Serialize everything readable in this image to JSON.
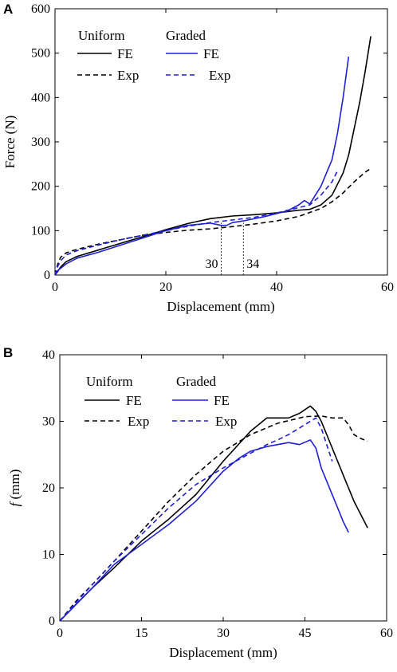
{
  "colors": {
    "uniform": "#000000",
    "graded": "#1f1fd6"
  },
  "chart_data": [
    {
      "type": "line",
      "panel": "A",
      "xlabel": "Displacement (mm)",
      "ylabel": "Force (N)",
      "xlim": [
        0,
        60
      ],
      "ylim": [
        0,
        600
      ],
      "xticks": [
        0,
        20,
        40,
        60
      ],
      "yticks": [
        0,
        100,
        200,
        300,
        400,
        500,
        600
      ],
      "legend": {
        "group1": "Uniform",
        "group2": "Graded",
        "fe": "FE",
        "exp": "Exp"
      },
      "annotations": [
        {
          "x": 30,
          "label": "30"
        },
        {
          "x": 34,
          "label": "34"
        }
      ],
      "series": [
        {
          "group": "Uniform",
          "kind": "FE",
          "color": "uniform",
          "dash": false,
          "x": [
            0,
            0.5,
            1,
            2,
            4,
            8,
            12,
            16,
            20,
            24,
            28,
            32,
            36,
            40,
            44,
            46,
            48,
            50,
            52,
            53,
            54,
            55,
            56,
            57
          ],
          "y": [
            0,
            8,
            18,
            30,
            42,
            57,
            72,
            87,
            102,
            116,
            127,
            133,
            136,
            140,
            146,
            148,
            158,
            180,
            230,
            270,
            330,
            390,
            460,
            538
          ]
        },
        {
          "group": "Uniform",
          "kind": "Exp",
          "color": "uniform",
          "dash": true,
          "x": [
            0,
            0.5,
            1,
            2,
            4,
            8,
            12,
            16,
            20,
            24,
            28,
            32,
            36,
            40,
            44,
            48,
            50,
            52,
            54,
            56,
            57
          ],
          "y": [
            0,
            25,
            40,
            50,
            58,
            70,
            80,
            90,
            96,
            101,
            104,
            109,
            115,
            122,
            132,
            150,
            165,
            185,
            210,
            232,
            240
          ]
        },
        {
          "group": "Graded",
          "kind": "FE",
          "color": "graded",
          "dash": false,
          "x": [
            0,
            0.5,
            1,
            2,
            4,
            8,
            12,
            16,
            20,
            24,
            28,
            30,
            31,
            32,
            34,
            38,
            42,
            44,
            45,
            46,
            48,
            50,
            51,
            52,
            53
          ],
          "y": [
            0,
            10,
            15,
            25,
            38,
            52,
            68,
            84,
            100,
            112,
            117,
            112,
            112,
            118,
            122,
            132,
            145,
            158,
            168,
            160,
            200,
            260,
            320,
            400,
            492
          ]
        },
        {
          "group": "Graded",
          "kind": "Exp",
          "color": "graded",
          "dash": true,
          "x": [
            0,
            0.5,
            1,
            2,
            4,
            8,
            12,
            16,
            20,
            24,
            28,
            32,
            36,
            40,
            44,
            46,
            48,
            50,
            51
          ],
          "y": [
            0,
            20,
            32,
            45,
            55,
            68,
            80,
            90,
            100,
            110,
            118,
            124,
            130,
            140,
            152,
            158,
            180,
            210,
            235
          ]
        }
      ]
    },
    {
      "type": "line",
      "panel": "B",
      "xlabel": "Displacement (mm)",
      "ylabel": "f (mm)",
      "xlim": [
        0,
        60
      ],
      "ylim": [
        0,
        40
      ],
      "xticks": [
        0,
        15,
        30,
        45,
        60
      ],
      "yticks": [
        0,
        10,
        20,
        30,
        40
      ],
      "legend": {
        "group1": "Uniform",
        "group2": "Graded",
        "fe": "FE",
        "exp": "Exp"
      },
      "series": [
        {
          "group": "Uniform",
          "kind": "FE",
          "color": "uniform",
          "dash": false,
          "x": [
            0,
            3,
            6,
            10,
            15,
            20,
            25,
            30,
            35,
            38,
            40,
            42,
            44,
            46,
            47,
            48,
            50,
            52,
            54,
            56.5
          ],
          "y": [
            0,
            2.5,
            5,
            8,
            12,
            15.3,
            19,
            24,
            28.5,
            30.5,
            30.5,
            30.5,
            31.2,
            32.3,
            31.5,
            30,
            26,
            22,
            18,
            14
          ]
        },
        {
          "group": "Uniform",
          "kind": "Exp",
          "color": "uniform",
          "dash": true,
          "x": [
            0,
            3,
            6,
            10,
            15,
            20,
            25,
            30,
            35,
            40,
            45,
            48,
            50,
            52,
            53,
            54,
            55,
            56.5
          ],
          "y": [
            0,
            3,
            5.5,
            9,
            13.5,
            18,
            22,
            25.5,
            28,
            29.7,
            30.7,
            30.8,
            30.5,
            30.5,
            29.5,
            28,
            27.5,
            27
          ]
        },
        {
          "group": "Graded",
          "kind": "FE",
          "color": "graded",
          "dash": false,
          "x": [
            0,
            3,
            6,
            10,
            15,
            20,
            25,
            30,
            33,
            35,
            38,
            40,
            42,
            44,
            46,
            47,
            48,
            49,
            50,
            51,
            52,
            53
          ],
          "y": [
            0,
            2.5,
            5,
            8.5,
            11.5,
            14.5,
            18,
            22.5,
            24.5,
            25.5,
            26.2,
            26.5,
            26.8,
            26.5,
            27.2,
            26,
            23,
            21,
            19,
            17,
            15,
            13.3
          ]
        },
        {
          "group": "Graded",
          "kind": "Exp",
          "color": "graded",
          "dash": true,
          "x": [
            0,
            3,
            6,
            10,
            15,
            20,
            25,
            30,
            35,
            38,
            40,
            42,
            44,
            46,
            47,
            48,
            49,
            50
          ],
          "y": [
            0,
            2.8,
            5.5,
            9,
            13,
            17,
            20.5,
            23,
            25.2,
            26.5,
            27.2,
            28,
            29,
            30,
            30.5,
            29,
            26.5,
            24
          ]
        }
      ]
    }
  ]
}
